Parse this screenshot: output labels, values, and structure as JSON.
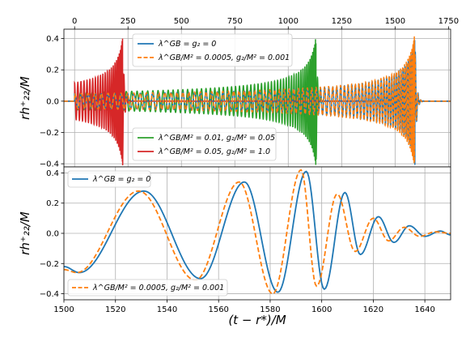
{
  "chart_data": [
    {
      "type": "line",
      "ylabel": "rh⁺₂₂/M",
      "xlim": [
        -50,
        1760
      ],
      "ylim": [
        -0.42,
        0.46
      ],
      "xticks": [
        0,
        250,
        500,
        750,
        1000,
        1250,
        1500,
        1750
      ],
      "xtick_labels": [
        "0",
        "250",
        "500",
        "750",
        "1000",
        "1250",
        "1500",
        "1750"
      ],
      "yticks": [
        0.4,
        0.2,
        0.0,
        -0.2,
        -0.4
      ],
      "ytick_labels": [
        "0.4",
        "0.2",
        "0.0",
        "−0.2",
        "−0.4"
      ],
      "xtick_position": "top",
      "grid": true,
      "legend": [
        {
          "location": "top",
          "entries": [
            "λ^GB = g₂ = 0",
            "λ^GB/M² = 0.0005, g₂/M² = 0.001"
          ]
        },
        {
          "location": "bottom",
          "entries": [
            "λ^GB/M² = 0.01, g₂/M² = 0.05",
            "λ^GB/M² = 0.05, g₂/M² = 1.0"
          ]
        }
      ],
      "series": [
        {
          "name": "λ^GB = g₂ = 0",
          "color": "#1f77b4",
          "style": "solid",
          "merger_t": 1593,
          "peak": 0.41
        },
        {
          "name": "λ^GB/M² = 0.0005, g₂/M² = 0.001",
          "color": "#ff7f0e",
          "style": "dashed",
          "merger_t": 1591,
          "peak": 0.43
        },
        {
          "name": "λ^GB/M² = 0.01, g₂/M² = 0.05",
          "color": "#2ca02c",
          "style": "solid",
          "merger_t": 1130,
          "peak": 0.42
        },
        {
          "name": "λ^GB/M² = 0.05, g₂/M² = 1.0",
          "color": "#d62728",
          "style": "solid",
          "merger_t": 225,
          "peak": 0.41
        }
      ]
    },
    {
      "type": "line",
      "xlabel": "(t − r*)/M",
      "ylabel": "rh⁺₂₂/M",
      "xlim": [
        1500,
        1650
      ],
      "ylim": [
        -0.44,
        0.44
      ],
      "xticks": [
        1500,
        1520,
        1540,
        1560,
        1580,
        1600,
        1620,
        1640
      ],
      "xtick_labels": [
        "1500",
        "1520",
        "1540",
        "1560",
        "1580",
        "1600",
        "1620",
        "1640"
      ],
      "yticks": [
        0.4,
        0.2,
        0.0,
        -0.2,
        -0.4
      ],
      "ytick_labels": [
        "0.4",
        "0.2",
        "0.0",
        "−0.2",
        "−0.4"
      ],
      "grid": true,
      "legend": [
        {
          "location": "upper left",
          "entries": [
            "λ^GB = g₂ = 0"
          ]
        },
        {
          "location": "lower left",
          "entries": [
            "λ^GB/M² = 0.0005, g₂/M² = 0.001"
          ]
        }
      ],
      "series": [
        {
          "name": "λ^GB = g₂ = 0",
          "color": "#1f77b4",
          "style": "solid",
          "extrema": [
            [
              1500,
              -0.22
            ],
            [
              1506,
              -0.26
            ],
            [
              1531,
              0.28
            ],
            [
              1553,
              -0.3
            ],
            [
              1570,
              0.34
            ],
            [
              1583,
              -0.39
            ],
            [
              1594,
              0.41
            ],
            [
              1601,
              -0.37
            ],
            [
              1609,
              0.27
            ],
            [
              1615,
              -0.14
            ],
            [
              1622,
              0.11
            ],
            [
              1628,
              -0.06
            ],
            [
              1634,
              0.05
            ],
            [
              1640,
              -0.02
            ],
            [
              1646,
              0.015
            ],
            [
              1650,
              -0.01
            ]
          ]
        },
        {
          "name": "λ^GB/M² = 0.0005, g₂/M² = 0.001",
          "color": "#ff7f0e",
          "style": "dashed",
          "extrema": [
            [
              1500,
              -0.24
            ],
            [
              1505,
              -0.26
            ],
            [
              1529,
              0.28
            ],
            [
              1551,
              -0.31
            ],
            [
              1568,
              0.34
            ],
            [
              1581,
              -0.4
            ],
            [
              1592,
              0.42
            ],
            [
              1598,
              -0.35
            ],
            [
              1606,
              0.26
            ],
            [
              1613,
              -0.12
            ],
            [
              1620,
              0.1
            ],
            [
              1626,
              -0.05
            ],
            [
              1632,
              0.04
            ],
            [
              1638,
              -0.02
            ],
            [
              1644,
              0.01
            ],
            [
              1650,
              0.0
            ]
          ]
        }
      ]
    }
  ]
}
